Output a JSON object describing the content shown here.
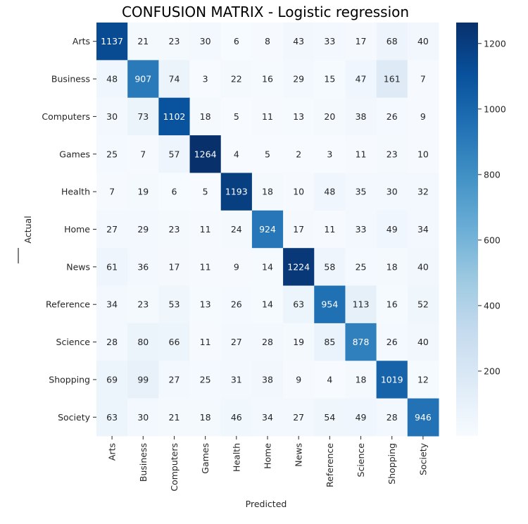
{
  "chart_data": {
    "type": "heatmap",
    "title": "CONFUSION MATRIX - Logistic regression",
    "xlabel": "Predicted",
    "ylabel": "Actual",
    "x_categories": [
      "Arts",
      "Business",
      "Computers",
      "Games",
      "Health",
      "Home",
      "News",
      "Reference",
      "Science",
      "Shopping",
      "Society"
    ],
    "y_categories": [
      "Arts",
      "Business",
      "Computers",
      "Games",
      "Health",
      "Home",
      "News",
      "Reference",
      "Science",
      "Shopping",
      "Society"
    ],
    "values": [
      [
        1137,
        21,
        23,
        30,
        6,
        8,
        43,
        33,
        17,
        68,
        40
      ],
      [
        48,
        907,
        74,
        3,
        22,
        16,
        29,
        15,
        47,
        161,
        7
      ],
      [
        30,
        73,
        1102,
        18,
        5,
        11,
        13,
        20,
        38,
        26,
        9
      ],
      [
        25,
        7,
        57,
        1264,
        4,
        5,
        2,
        3,
        11,
        23,
        10
      ],
      [
        7,
        19,
        6,
        5,
        1193,
        18,
        10,
        48,
        35,
        30,
        32
      ],
      [
        27,
        29,
        23,
        11,
        24,
        924,
        17,
        11,
        33,
        49,
        34
      ],
      [
        61,
        36,
        17,
        11,
        9,
        14,
        1224,
        58,
        25,
        18,
        40
      ],
      [
        34,
        23,
        53,
        13,
        26,
        14,
        63,
        954,
        113,
        16,
        52
      ],
      [
        28,
        80,
        66,
        11,
        27,
        28,
        19,
        85,
        878,
        26,
        40
      ],
      [
        69,
        99,
        27,
        25,
        31,
        38,
        9,
        4,
        18,
        1019,
        12
      ],
      [
        63,
        30,
        21,
        18,
        46,
        34,
        27,
        54,
        49,
        28,
        946
      ]
    ],
    "colormap": "Blues",
    "colorbar": {
      "range": [
        2,
        1264
      ],
      "ticks": [
        200,
        400,
        600,
        800,
        1000,
        1200
      ]
    },
    "grid": false,
    "legend": "colorbar-right"
  }
}
